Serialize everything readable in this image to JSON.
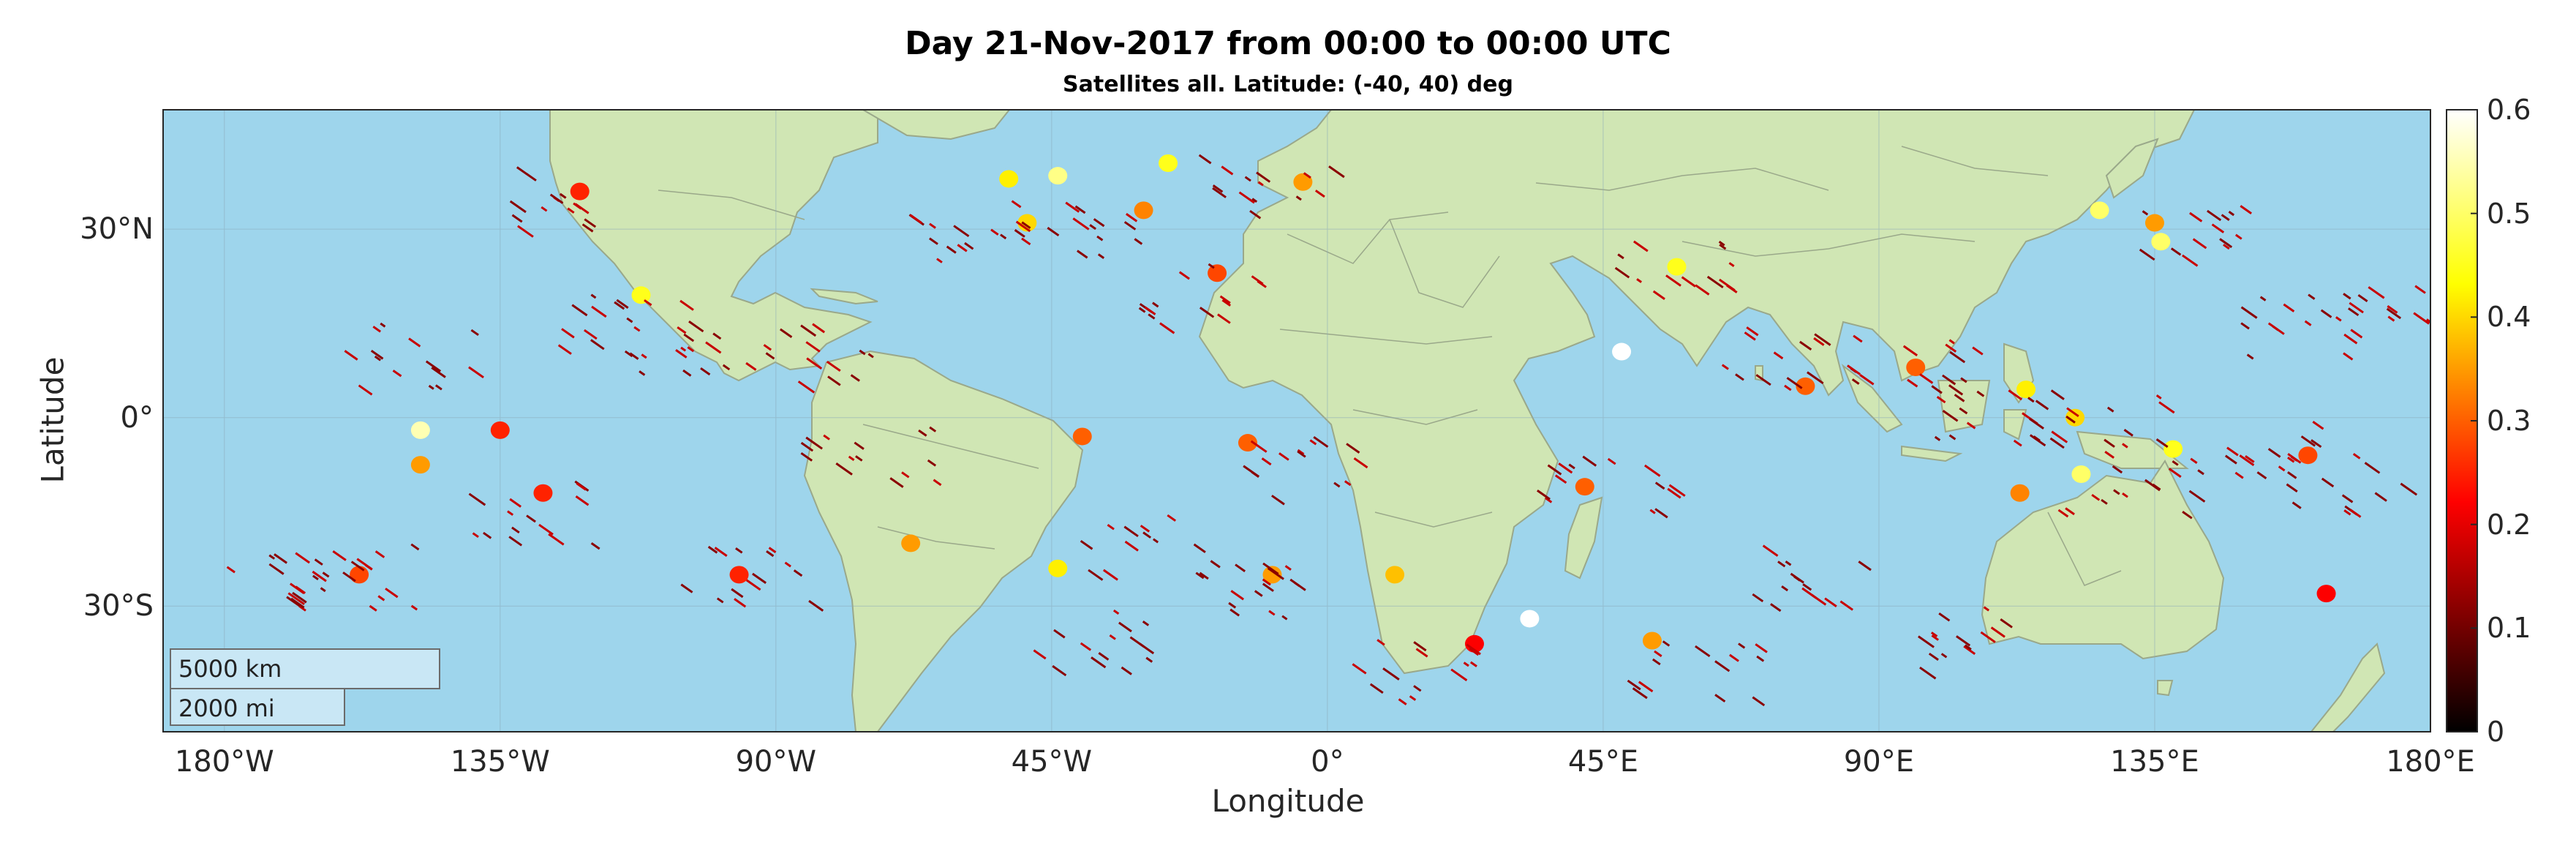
{
  "title": "Day 21-Nov-2017 from 00:00 to 00:00 UTC",
  "subtitle": "Satellites all. Latitude: (-40, 40) deg",
  "axes": {
    "xlabel": "Longitude",
    "ylabel": "Latitude",
    "xticks": [
      {
        "value": -180,
        "label": "180°W"
      },
      {
        "value": -135,
        "label": "135°W"
      },
      {
        "value": -90,
        "label": "90°W"
      },
      {
        "value": -45,
        "label": "45°W"
      },
      {
        "value": 0,
        "label": "0°"
      },
      {
        "value": 45,
        "label": "45°E"
      },
      {
        "value": 90,
        "label": "90°E"
      },
      {
        "value": 135,
        "label": "135°E"
      },
      {
        "value": 180,
        "label": "180°E"
      }
    ],
    "yticks": [
      {
        "value": 30,
        "label": "30°N"
      },
      {
        "value": 0,
        "label": "0°"
      },
      {
        "value": -30,
        "label": "30°S"
      }
    ],
    "lon_range": [
      -190,
      180
    ],
    "lat_range": [
      -50,
      49
    ]
  },
  "colorbar": {
    "min": 0,
    "max": 0.6,
    "ticks": [
      "0",
      "0.1",
      "0.2",
      "0.3",
      "0.4",
      "0.5",
      "0.6"
    ],
    "colormap": "hot",
    "colors": [
      "#000000",
      "#ff0000",
      "#ffff00",
      "#ffffff"
    ]
  },
  "scale_bar": {
    "km_label": "5000 km",
    "mi_label": "2000 mi"
  },
  "colors": {
    "ocean": "#9ed5ec",
    "land": "#d0e6b4",
    "border": "#9aa88a"
  },
  "chart_data": {
    "type": "scatter",
    "x_axis": "longitude (deg)",
    "y_axis": "latitude (deg)",
    "color_axis_range": [
      0,
      0.6
    ],
    "points": [
      {
        "lon": -52,
        "lat": 38,
        "v": 0.42
      },
      {
        "lon": -44,
        "lat": 38.5,
        "v": 0.52
      },
      {
        "lon": -26,
        "lat": 40.5,
        "v": 0.45
      },
      {
        "lon": -49,
        "lat": 31,
        "v": 0.4
      },
      {
        "lon": -30,
        "lat": 33,
        "v": 0.33
      },
      {
        "lon": -18,
        "lat": 23,
        "v": 0.28
      },
      {
        "lon": -112,
        "lat": 19.5,
        "v": 0.45
      },
      {
        "lon": -148,
        "lat": -2,
        "v": 0.55
      },
      {
        "lon": -148,
        "lat": -7.5,
        "v": 0.35
      },
      {
        "lon": -135,
        "lat": -2,
        "v": 0.25
      },
      {
        "lon": -128,
        "lat": -12,
        "v": 0.25
      },
      {
        "lon": -158,
        "lat": -25,
        "v": 0.28
      },
      {
        "lon": -96,
        "lat": -25,
        "v": 0.25
      },
      {
        "lon": -68,
        "lat": -20,
        "v": 0.35
      },
      {
        "lon": -40,
        "lat": -3,
        "v": 0.3
      },
      {
        "lon": -44,
        "lat": -24,
        "v": 0.42
      },
      {
        "lon": -13,
        "lat": -4,
        "v": 0.3
      },
      {
        "lon": -9,
        "lat": -25,
        "v": 0.35
      },
      {
        "lon": 11,
        "lat": -25,
        "v": 0.38
      },
      {
        "lon": 33,
        "lat": -32,
        "v": 0.6
      },
      {
        "lon": 53,
        "lat": -35.5,
        "v": 0.35
      },
      {
        "lon": 42,
        "lat": -11,
        "v": 0.3
      },
      {
        "lon": 48,
        "lat": 10.5,
        "v": 0.6
      },
      {
        "lon": 57,
        "lat": 24,
        "v": 0.45
      },
      {
        "lon": 78,
        "lat": 5,
        "v": 0.3
      },
      {
        "lon": 96,
        "lat": 8,
        "v": 0.3
      },
      {
        "lon": 114,
        "lat": 4.5,
        "v": 0.42
      },
      {
        "lon": 126,
        "lat": 33,
        "v": 0.5
      },
      {
        "lon": 136,
        "lat": 28,
        "v": 0.5
      },
      {
        "lon": 135,
        "lat": 31,
        "v": 0.35
      },
      {
        "lon": 122,
        "lat": 0,
        "v": 0.4
      },
      {
        "lon": 123,
        "lat": -9,
        "v": 0.5
      },
      {
        "lon": 113,
        "lat": -12,
        "v": 0.33
      },
      {
        "lon": 138,
        "lat": -5,
        "v": 0.45
      },
      {
        "lon": 160,
        "lat": -6,
        "v": 0.28
      },
      {
        "lon": 163,
        "lat": -28,
        "v": 0.22
      },
      {
        "lon": -4,
        "lat": 37.5,
        "v": 0.35
      },
      {
        "lon": -122,
        "lat": 36,
        "v": 0.25
      },
      {
        "lon": 24,
        "lat": -36,
        "v": 0.22
      }
    ]
  }
}
